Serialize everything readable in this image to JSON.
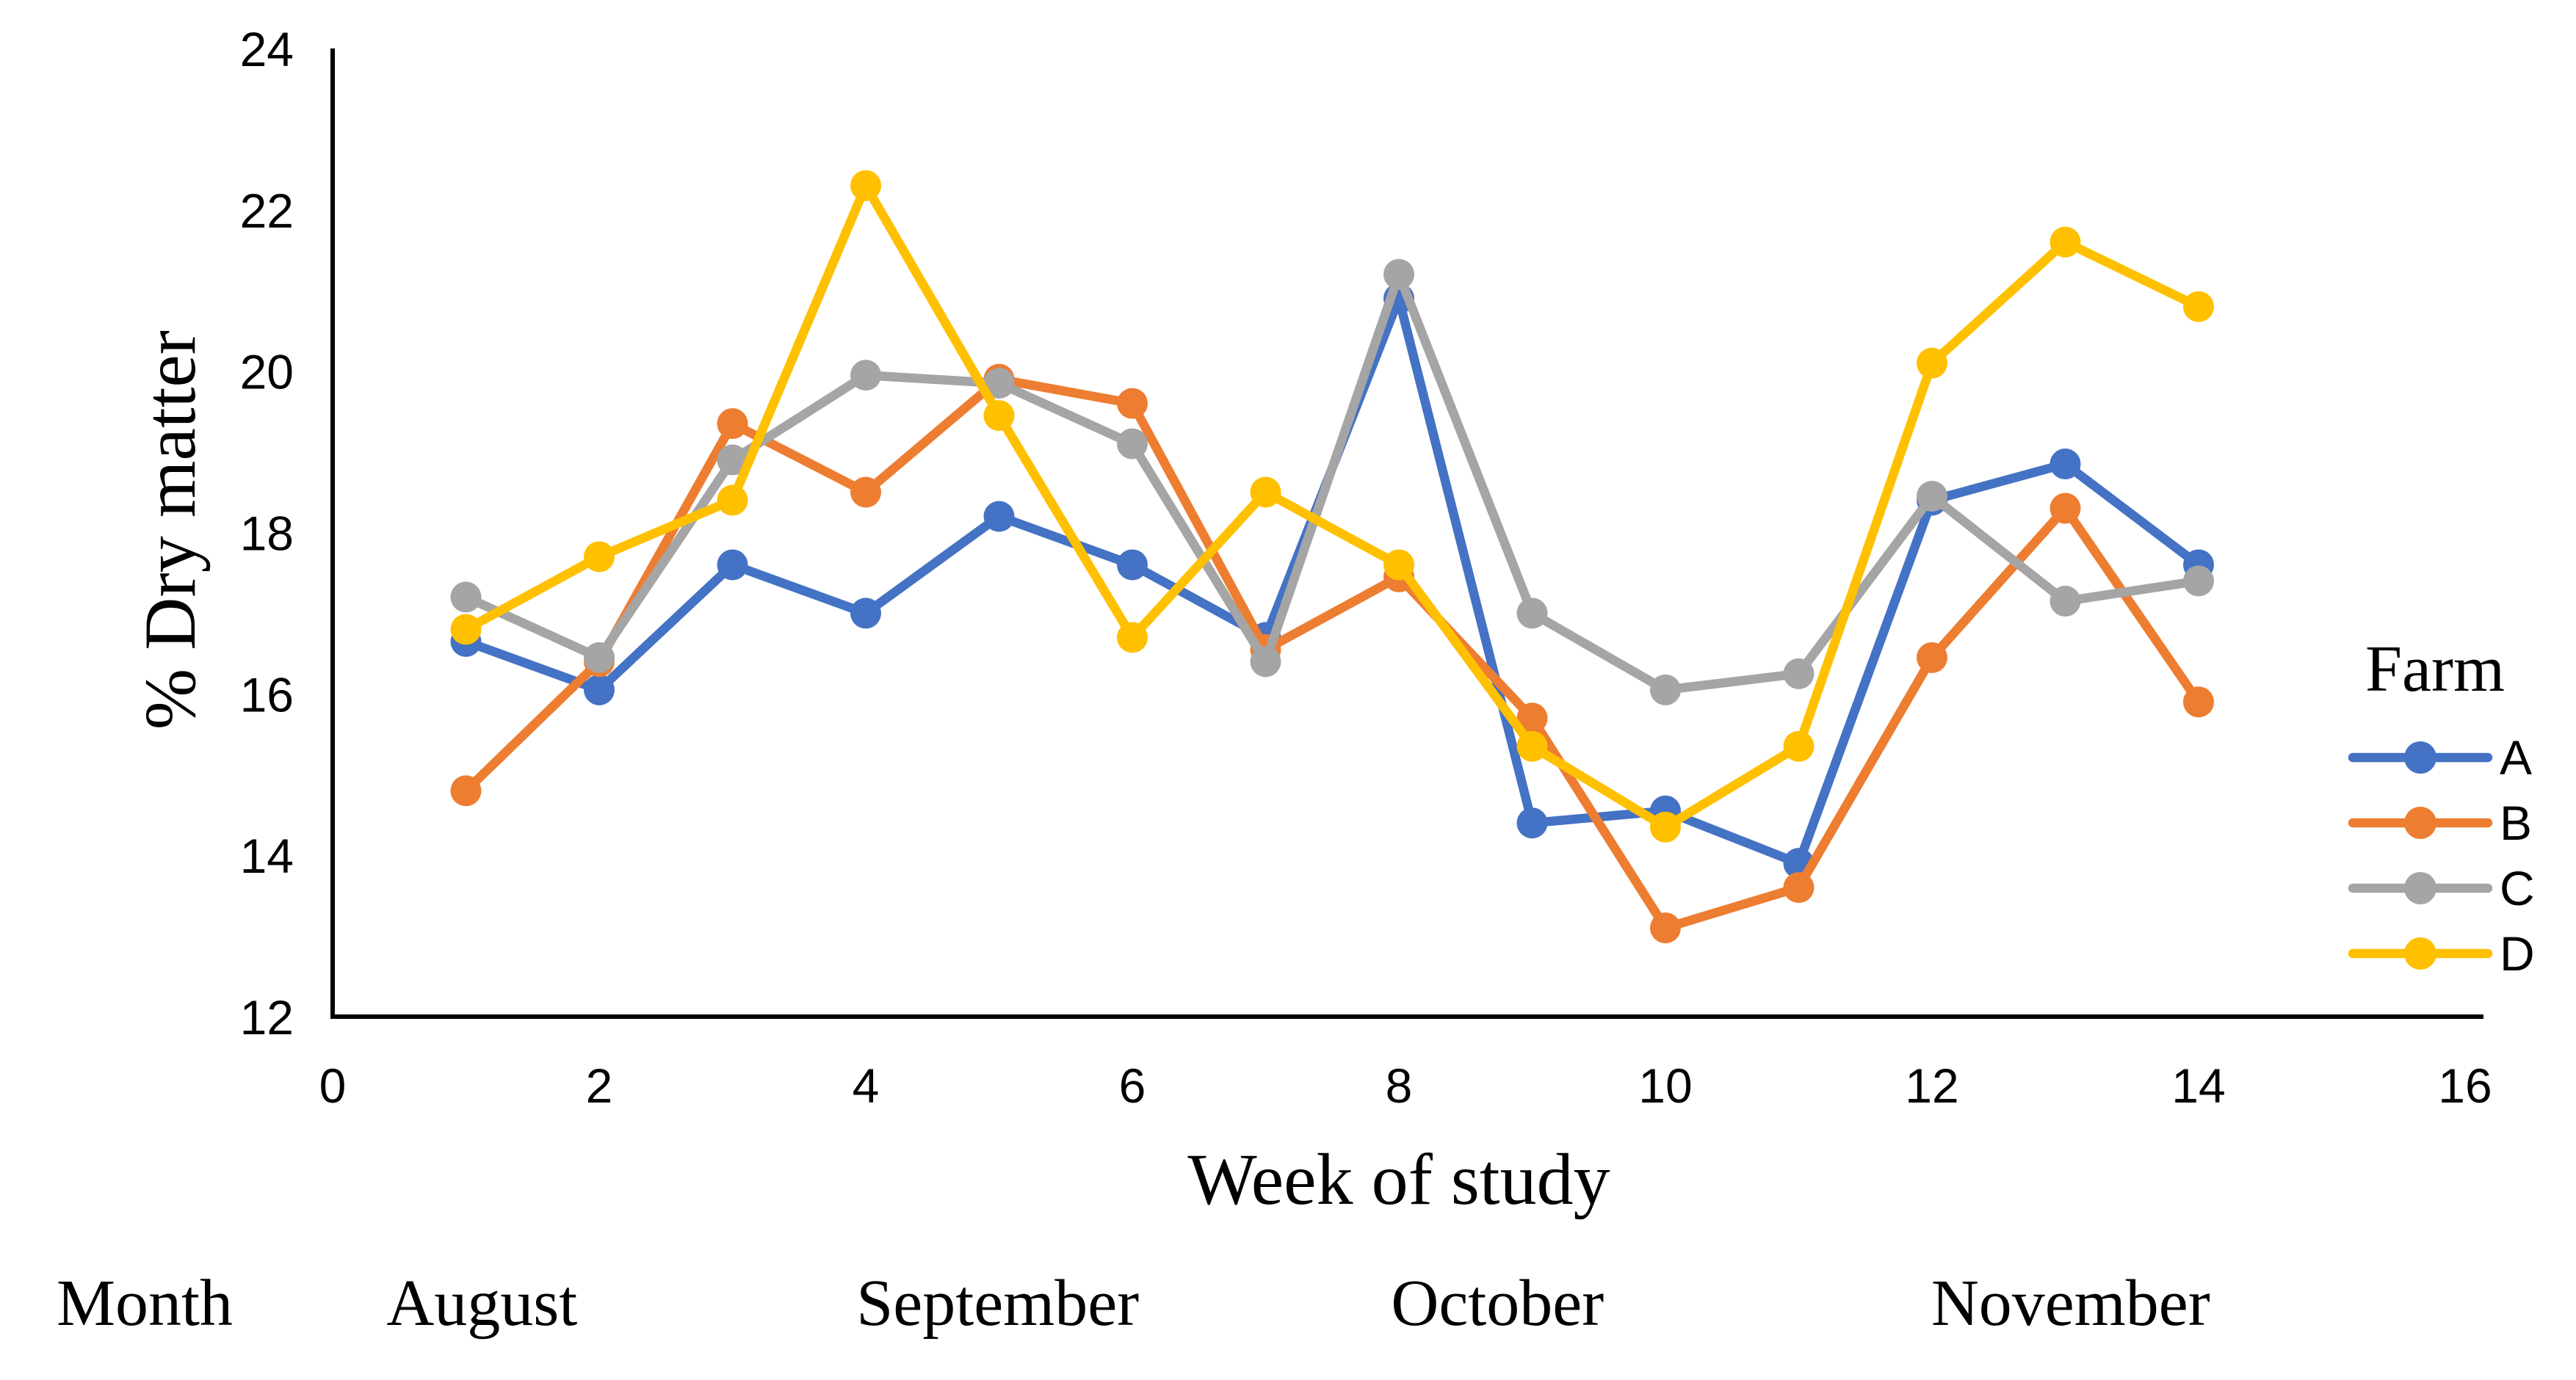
{
  "chart_data": {
    "type": "line",
    "title": "",
    "xlabel": "Week of study",
    "ylabel": "% Dry matter",
    "xlim": [
      0,
      16
    ],
    "ylim": [
      12,
      24
    ],
    "x_ticks": [
      0,
      2,
      4,
      6,
      8,
      10,
      12,
      14,
      16
    ],
    "y_ticks": [
      12,
      14,
      16,
      18,
      20,
      22,
      24
    ],
    "grid": false,
    "axis_color": "#000000",
    "legend_title": "Farm",
    "legend_position": "right-middle",
    "x": [
      1,
      2,
      3,
      4,
      5,
      6,
      7,
      8,
      9,
      10,
      11,
      12,
      13,
      14
    ],
    "series": [
      {
        "name": "A",
        "color": "#4472C4",
        "values": [
          16.65,
          16.05,
          17.6,
          17.0,
          18.2,
          17.6,
          16.7,
          20.9,
          14.4,
          14.55,
          13.9,
          18.4,
          18.85,
          17.6
        ]
      },
      {
        "name": "B",
        "color": "#ED7D31",
        "values": [
          14.8,
          16.4,
          19.35,
          18.5,
          19.9,
          19.6,
          16.55,
          17.45,
          15.7,
          13.1,
          13.6,
          16.45,
          18.3,
          15.9
        ]
      },
      {
        "name": "C",
        "color": "#A5A5A5",
        "values": [
          17.2,
          16.45,
          18.9,
          19.95,
          19.85,
          19.1,
          16.4,
          21.2,
          17.0,
          16.05,
          16.25,
          18.45,
          17.15,
          17.4
        ]
      },
      {
        "name": "D",
        "color": "#FFC000",
        "values": [
          16.8,
          17.7,
          18.4,
          22.3,
          19.45,
          16.7,
          18.5,
          17.6,
          15.35,
          14.35,
          15.35,
          20.1,
          21.6,
          20.8
        ]
      }
    ],
    "months_row": {
      "label": "Month",
      "months": [
        {
          "name": "August",
          "week_center": 1.12
        },
        {
          "name": "September",
          "week_center": 4.99
        },
        {
          "name": "October",
          "week_center": 8.74
        },
        {
          "name": "November",
          "week_center": 13.04
        }
      ]
    }
  }
}
